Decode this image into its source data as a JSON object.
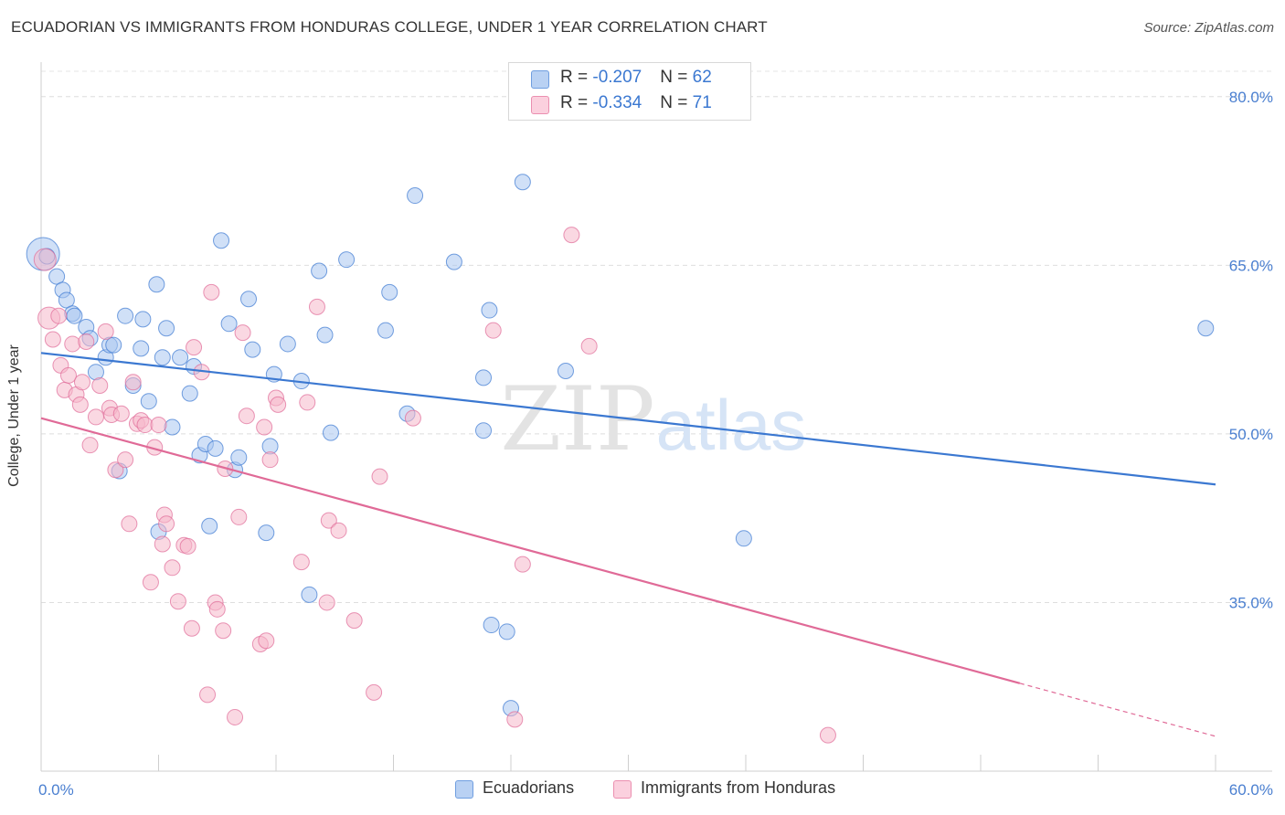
{
  "header": {
    "title": "ECUADORIAN VS IMMIGRANTS FROM HONDURAS COLLEGE, UNDER 1 YEAR CORRELATION CHART",
    "source": "Source: ZipAtlas.com"
  },
  "legend": {
    "rows": [
      {
        "r_label": "R = ",
        "r_value": "-0.207",
        "n_label": "N = ",
        "n_value": "62",
        "color": "#a9c6f0"
      },
      {
        "r_label": "R = ",
        "r_value": "-0.334",
        "n_label": "N = ",
        "n_value": "71",
        "color": "#f5b8cb"
      }
    ]
  },
  "bottom_legend": [
    {
      "label": "Ecuadorians",
      "color": "#a9c6f0"
    },
    {
      "label": "Immigrants from Honduras",
      "color": "#f5b8cb"
    }
  ],
  "watermark": {
    "zip": "ZIP",
    "atlas": "atlas"
  },
  "chart_data": {
    "type": "scatter",
    "title": "ECUADORIAN VS IMMIGRANTS FROM HONDURAS COLLEGE, UNDER 1 YEAR CORRELATION CHART",
    "xlabel": "",
    "ylabel": "College, Under 1 year",
    "xlim": [
      0,
      60
    ],
    "ylim": [
      20,
      82.5
    ],
    "x_tick_labels": [
      {
        "value": 0,
        "label": "0.0%"
      },
      {
        "value": 60,
        "label": "60.0%"
      }
    ],
    "y_tick_labels": [
      {
        "value": 80,
        "label": "80.0%"
      },
      {
        "value": 65,
        "label": "65.0%"
      },
      {
        "value": 50,
        "label": "50.0%"
      },
      {
        "value": 35,
        "label": "35.0%"
      }
    ],
    "grid": true,
    "legend_position": "top-center",
    "series": [
      {
        "name": "Ecuadorians",
        "color": "#3b78d1",
        "fill": "#a9c6f0",
        "trend": {
          "x": [
            0,
            60
          ],
          "y": [
            57.2,
            45.5
          ],
          "dashed_from": null
        },
        "points": [
          [
            0.1,
            66.0,
            3
          ],
          [
            0.3,
            65.8,
            1
          ],
          [
            0.8,
            64.0,
            1
          ],
          [
            1.1,
            62.8,
            1
          ],
          [
            1.3,
            61.9,
            1
          ],
          [
            1.6,
            60.7,
            1
          ],
          [
            1.7,
            60.5,
            1
          ],
          [
            2.3,
            59.5,
            1
          ],
          [
            2.5,
            58.5,
            1
          ],
          [
            2.8,
            55.5,
            1
          ],
          [
            3.3,
            56.8,
            1
          ],
          [
            3.5,
            57.9,
            1
          ],
          [
            3.7,
            57.9,
            1
          ],
          [
            4.3,
            60.5,
            1
          ],
          [
            4.7,
            54.3,
            1
          ],
          [
            5.1,
            57.6,
            1
          ],
          [
            5.2,
            60.2,
            1
          ],
          [
            5.5,
            52.9,
            1
          ],
          [
            5.9,
            63.3,
            1
          ],
          [
            6.2,
            56.8,
            1
          ],
          [
            6.4,
            59.4,
            1
          ],
          [
            6.7,
            50.6,
            1
          ],
          [
            7.1,
            56.8,
            1
          ],
          [
            7.6,
            53.6,
            1
          ],
          [
            7.8,
            56.0,
            1
          ],
          [
            8.1,
            48.1,
            1
          ],
          [
            8.4,
            49.1,
            1
          ],
          [
            8.9,
            48.7,
            1
          ],
          [
            9.2,
            67.2,
            1
          ],
          [
            9.6,
            59.8,
            1
          ],
          [
            9.9,
            46.8,
            1
          ],
          [
            10.1,
            47.9,
            1
          ],
          [
            10.6,
            62.0,
            1
          ],
          [
            10.8,
            57.5,
            1
          ],
          [
            11.5,
            41.2,
            1
          ],
          [
            11.7,
            48.9,
            1
          ],
          [
            11.9,
            55.3,
            1
          ],
          [
            12.6,
            58.0,
            1
          ],
          [
            13.3,
            54.7,
            1
          ],
          [
            13.7,
            35.7,
            1
          ],
          [
            14.2,
            64.5,
            1
          ],
          [
            14.5,
            58.8,
            1
          ],
          [
            14.8,
            50.1,
            1
          ],
          [
            15.6,
            65.5,
            1
          ],
          [
            17.6,
            59.2,
            1
          ],
          [
            17.8,
            62.6,
            1
          ],
          [
            18.7,
            51.8,
            1
          ],
          [
            19.1,
            71.2,
            1
          ],
          [
            21.1,
            65.3,
            1
          ],
          [
            22.6,
            55.0,
            1
          ],
          [
            22.6,
            50.3,
            1
          ],
          [
            22.9,
            61.0,
            1
          ],
          [
            23.0,
            33.0,
            1
          ],
          [
            23.8,
            32.4,
            1
          ],
          [
            24.0,
            25.6,
            1
          ],
          [
            24.6,
            72.4,
            1
          ],
          [
            26.8,
            55.6,
            1
          ],
          [
            35.9,
            40.7,
            1
          ],
          [
            59.5,
            59.4,
            1
          ],
          [
            6.0,
            41.3,
            1
          ],
          [
            8.6,
            41.8,
            1
          ],
          [
            4.0,
            46.7,
            1
          ]
        ]
      },
      {
        "name": "Immigrants from Honduras",
        "color": "#e06a97",
        "fill": "#f5b8cb",
        "trend": {
          "x": [
            0,
            60
          ],
          "y": [
            51.4,
            23.1
          ],
          "dashed_from": 50
        },
        "points": [
          [
            0.2,
            65.5,
            2
          ],
          [
            0.4,
            60.3,
            2
          ],
          [
            0.6,
            58.4,
            1
          ],
          [
            0.9,
            60.5,
            1
          ],
          [
            1.0,
            56.1,
            1
          ],
          [
            1.2,
            53.9,
            1
          ],
          [
            1.4,
            55.2,
            1
          ],
          [
            1.6,
            58.0,
            1
          ],
          [
            1.8,
            53.5,
            1
          ],
          [
            2.0,
            52.6,
            1
          ],
          [
            2.1,
            54.6,
            1
          ],
          [
            2.3,
            58.2,
            1
          ],
          [
            2.5,
            49.0,
            1
          ],
          [
            2.8,
            51.5,
            1
          ],
          [
            3.0,
            54.3,
            1
          ],
          [
            3.3,
            59.1,
            1
          ],
          [
            3.5,
            52.3,
            1
          ],
          [
            3.6,
            51.7,
            1
          ],
          [
            3.8,
            46.8,
            1
          ],
          [
            4.1,
            51.8,
            1
          ],
          [
            4.3,
            47.7,
            1
          ],
          [
            4.5,
            42.0,
            1
          ],
          [
            4.7,
            54.6,
            1
          ],
          [
            4.9,
            50.9,
            1
          ],
          [
            5.1,
            51.2,
            1
          ],
          [
            5.3,
            50.8,
            1
          ],
          [
            5.6,
            36.8,
            1
          ],
          [
            5.8,
            48.8,
            1
          ],
          [
            6.0,
            50.8,
            1
          ],
          [
            6.2,
            40.2,
            1
          ],
          [
            6.3,
            42.8,
            1
          ],
          [
            6.4,
            42.0,
            1
          ],
          [
            6.7,
            38.1,
            1
          ],
          [
            7.0,
            35.1,
            1
          ],
          [
            7.3,
            40.1,
            1
          ],
          [
            7.5,
            40.0,
            1
          ],
          [
            7.7,
            32.7,
            1
          ],
          [
            7.8,
            57.7,
            1
          ],
          [
            8.2,
            55.5,
            1
          ],
          [
            8.5,
            26.8,
            1
          ],
          [
            8.7,
            62.6,
            1
          ],
          [
            8.9,
            35.0,
            1
          ],
          [
            9.0,
            34.4,
            1
          ],
          [
            9.3,
            32.5,
            1
          ],
          [
            9.4,
            46.9,
            1
          ],
          [
            9.9,
            24.8,
            1
          ],
          [
            10.1,
            42.6,
            1
          ],
          [
            10.3,
            59.0,
            1
          ],
          [
            10.5,
            51.6,
            1
          ],
          [
            11.2,
            31.3,
            1
          ],
          [
            11.4,
            50.6,
            1
          ],
          [
            11.5,
            31.6,
            1
          ],
          [
            11.7,
            47.7,
            1
          ],
          [
            12.0,
            53.2,
            1
          ],
          [
            12.1,
            52.6,
            1
          ],
          [
            13.3,
            38.6,
            1
          ],
          [
            13.6,
            52.8,
            1
          ],
          [
            14.1,
            61.3,
            1
          ],
          [
            14.6,
            35.0,
            1
          ],
          [
            14.7,
            42.3,
            1
          ],
          [
            15.2,
            41.4,
            1
          ],
          [
            16.0,
            33.4,
            1
          ],
          [
            17.0,
            27.0,
            1
          ],
          [
            17.3,
            46.2,
            1
          ],
          [
            19.0,
            51.4,
            1
          ],
          [
            23.1,
            59.2,
            1
          ],
          [
            24.2,
            24.6,
            1
          ],
          [
            24.6,
            38.4,
            1
          ],
          [
            27.1,
            67.7,
            1
          ],
          [
            28.0,
            57.8,
            1
          ],
          [
            40.2,
            23.2,
            1
          ]
        ]
      }
    ]
  }
}
